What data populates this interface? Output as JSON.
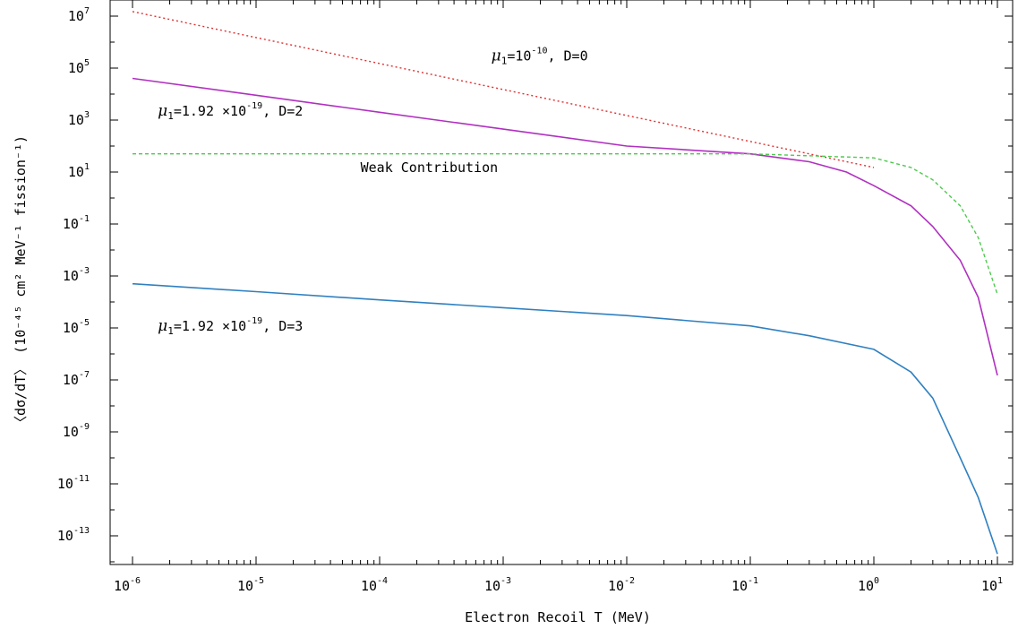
{
  "chart_data": {
    "type": "line",
    "xlabel": "Electron Recoil T (MeV)",
    "ylabel": "〈dσ/dT〉 (10⁻⁴⁵ cm² MeV⁻¹ fission⁻¹)",
    "x_scale": "log",
    "y_scale": "log",
    "xlim": [
      1e-06,
      10
    ],
    "ylim": [
      1e-14,
      10000000.0
    ],
    "grid": false,
    "x_ticks": [
      {
        "base": "10",
        "exp": "-6"
      },
      {
        "base": "10",
        "exp": "-5"
      },
      {
        "base": "10",
        "exp": "-4"
      },
      {
        "base": "10",
        "exp": "-3"
      },
      {
        "base": "10",
        "exp": "-2"
      },
      {
        "base": "10",
        "exp": "-1"
      },
      {
        "base": "10",
        "exp": "0"
      },
      {
        "base": "10",
        "exp": "1"
      }
    ],
    "y_ticks": [
      {
        "base": "10",
        "exp": "7"
      },
      {
        "base": "10",
        "exp": "5"
      },
      {
        "base": "10",
        "exp": "3"
      },
      {
        "base": "10",
        "exp": "1"
      },
      {
        "base": "10",
        "exp": "-1"
      },
      {
        "base": "10",
        "exp": "-3"
      },
      {
        "base": "10",
        "exp": "-5"
      },
      {
        "base": "10",
        "exp": "-7"
      },
      {
        "base": "10",
        "exp": "-9"
      },
      {
        "base": "10",
        "exp": "-11"
      },
      {
        "base": "10",
        "exp": "-13"
      }
    ],
    "series": [
      {
        "color": "#e03030",
        "dash": "dotted",
        "x": [
          1e-06,
          1e-05,
          0.0001,
          0.001,
          0.01,
          0.1,
          0.3,
          1
        ],
        "y": [
          15000000,
          1500000,
          150000,
          15000,
          1500,
          150,
          50,
          15
        ]
      },
      {
        "color": "#b030c0",
        "dash": "solid",
        "x": [
          1e-06,
          1e-05,
          0.0001,
          0.001,
          0.01,
          0.1,
          0.3,
          0.6,
          1,
          2,
          3,
          5,
          7,
          10
        ],
        "y": [
          40000,
          9000,
          2000,
          450,
          100,
          50,
          25,
          10,
          3,
          0.5,
          0.08,
          0.004,
          0.00015,
          1.5e-07
        ]
      },
      {
        "color": "#50c850",
        "dash": "dashed",
        "x": [
          1e-06,
          1e-05,
          0.0001,
          0.001,
          0.01,
          0.1,
          1,
          2,
          3,
          5,
          7,
          10
        ],
        "y": [
          50,
          50,
          50,
          50,
          50,
          50,
          35,
          15,
          5,
          0.5,
          0.03,
          0.0002
        ]
      },
      {
        "color": "#3080c0",
        "dash": "solid",
        "x": [
          1e-06,
          1e-05,
          0.0001,
          0.001,
          0.01,
          0.1,
          0.3,
          1,
          2,
          3,
          5,
          7,
          10
        ],
        "y": [
          0.0005,
          0.00025,
          0.00012,
          6e-05,
          3e-05,
          1.2e-05,
          5e-06,
          1.5e-06,
          2e-07,
          2e-08,
          1e-10,
          3e-12,
          2e-14
        ]
      }
    ],
    "annotations": [
      {
        "mu": "μ",
        "sub": "1",
        "pre": "=10",
        "exp": "-10",
        "post": ",  D=0",
        "x": 0.0008,
        "y": 200000
      },
      {
        "mu": "μ",
        "sub": "1",
        "pre": "=1.92 ×10",
        "exp": "-19",
        "post": ",  D=2",
        "x": 1.6e-06,
        "y": 1500
      },
      {
        "text": "Weak Contribution",
        "x": 7e-05,
        "y": 10
      },
      {
        "mu": "μ",
        "sub": "1",
        "pre": "=1.92 ×10",
        "exp": "-19",
        "post": ",  D=3",
        "x": 1.6e-06,
        "y": 8e-06
      }
    ]
  }
}
